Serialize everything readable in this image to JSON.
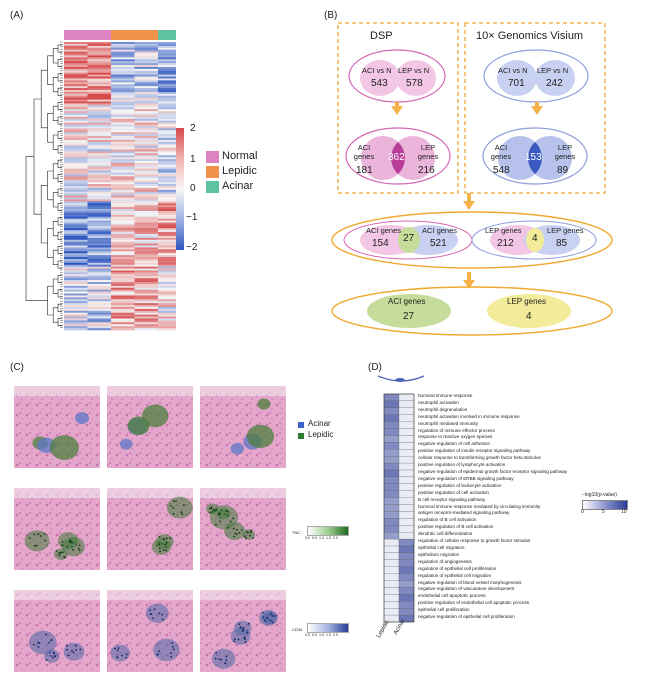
{
  "panels": {
    "A": {
      "label": "(A)",
      "colorbar_ticks": [
        "2",
        "1",
        "0",
        "−1",
        "−2"
      ],
      "groups": [
        {
          "name": "Normal",
          "color": "#dd82c2"
        },
        {
          "name": "Lepidic",
          "color": "#f0924a"
        },
        {
          "name": "Acinar",
          "color": "#5ec2a0"
        }
      ]
    },
    "B": {
      "label": "(B)",
      "dsp_title": "DSP",
      "visium_title": "10× Genomics Visium",
      "dsp": {
        "aci_vs_n_label": "ACI vs N",
        "aci_vs_n_value": "543",
        "lep_vs_n_label": "LEP vs N",
        "lep_vs_n_value": "578",
        "aci_genes_label": "ACI\ngenes",
        "aci_only": "181",
        "overlap": "362",
        "lep_genes_label": "LEP\ngenes",
        "lep_only": "216"
      },
      "visium": {
        "aci_vs_n_label": "ACI vs N",
        "aci_vs_n_value": "701",
        "lep_vs_n_label": "LEP vs N",
        "lep_vs_n_value": "242",
        "aci_genes_label": "ACI\ngenes",
        "aci_only": "548",
        "overlap": "153",
        "lep_genes_label": "LEP\ngenes",
        "lep_only": "89"
      },
      "combined": {
        "left": {
          "label_a": "ACI genes",
          "label_b": "ACI genes",
          "a_only": "154",
          "overlap": "27",
          "b_only": "521"
        },
        "right": {
          "label_a": "LEP genes",
          "label_b": "LEP genes",
          "a_only": "212",
          "overlap": "4",
          "b_only": "85"
        }
      },
      "final": {
        "aci_label": "ACI genes",
        "aci_value": "27",
        "lep_label": "LEP genes",
        "lep_value": "4"
      }
    },
    "C": {
      "label": "(C)",
      "legend": [
        {
          "name": "Acinar",
          "color": "#3a63c4"
        },
        {
          "name": "Lepidic",
          "color": "#2f7d32"
        }
      ],
      "cb1_label": "TNC",
      "cb1_ticks": "0.0  0.5  1.0  1.5  2.0",
      "cb2_label": "CD34",
      "cb2_ticks": "0.0  0.5  1.0  1.5  2.0"
    },
    "D": {
      "label": "(D)",
      "legend_title": "−log10(p-value)",
      "legend_ticks": [
        "0",
        "5",
        "10"
      ],
      "column_labels": [
        "Lepidic",
        "Acinar"
      ],
      "terms": [
        "humoral immune response",
        "neutrophil activation",
        "neutrophil degranulation",
        "neutrophil activation involved in immune response",
        "neutrophil mediated immunity",
        "regulation of immune effector process",
        "response to reactive oxygen species",
        "negative regulation of cell adhesion",
        "positive regulation of insulin receptor signaling pathway",
        "cellular response to transforming growth factor beta stimulus",
        "positive regulation of lymphocyte activation",
        "negative regulation of epidermal growth factor receptor signaling pathway",
        "negative regulation of ERBB signaling pathway",
        "positive regulation of leukocyte activation",
        "positive regulation of cell activation",
        "B cell receptor signaling pathway",
        "humoral immune response mediated by circulating immunity",
        "antigen receptor-mediated signaling pathway",
        "regulation of B cell activation",
        "positive regulation of B cell activation",
        "dendritic cell differentiation",
        "regulation of cellular response to growth factor stimulus",
        "epithelial cell migration",
        "epithelium migration",
        "regulation of angiogenesis",
        "regulation of epithelial cell proliferation",
        "regulation of epithelial cell migration",
        "negative regulation of blood vessel morphogenesis",
        "negative regulation of vasculature development",
        "endothelial cell apoptotic process",
        "positive regulation of endothelial cell apoptotic process",
        "epithelial cell proliferation",
        "negative regulation of epithelial cell proliferation"
      ],
      "lepidic_levels": [
        6,
        7,
        6,
        7,
        6,
        6,
        5,
        6,
        5,
        5,
        6,
        7,
        6,
        6,
        6,
        5,
        5,
        5,
        6,
        6,
        5,
        1,
        1,
        1,
        1,
        1,
        1,
        1,
        1,
        1,
        1,
        1,
        1
      ],
      "acinar_levels": [
        1,
        1,
        1,
        1,
        1,
        1,
        1,
        1,
        1,
        1,
        1,
        1,
        1,
        1,
        1,
        1,
        1,
        1,
        1,
        1,
        1,
        6,
        7,
        6,
        6,
        7,
        6,
        5,
        6,
        7,
        6,
        6,
        7
      ]
    }
  }
}
